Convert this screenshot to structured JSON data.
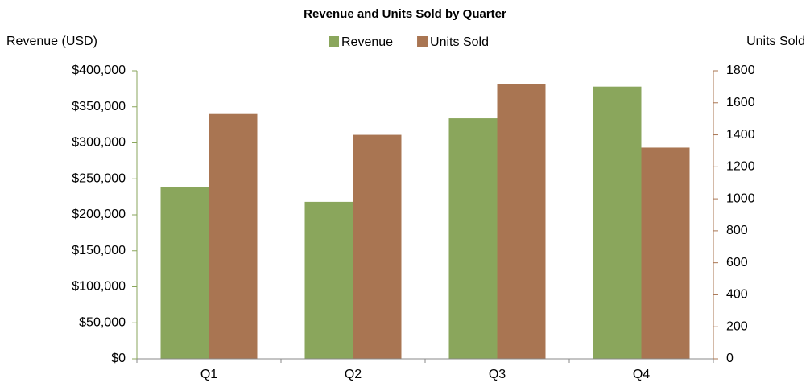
{
  "chart_data": {
    "type": "bar",
    "title": "Revenue and Units Sold by Quarter",
    "y_label": "Revenue (USD)",
    "y2_label": "Units Sold",
    "categories": [
      "Q1",
      "Q2",
      "Q3",
      "Q4"
    ],
    "series": [
      {
        "name": "Revenue",
        "color": "#8aa65c",
        "values": [
          238000,
          218000,
          334000,
          378000
        ]
      },
      {
        "name": "Units Sold",
        "color": "#a97552",
        "axis": "y2",
        "values": [
          1530,
          1400,
          1715,
          1320
        ]
      }
    ],
    "ylim": [
      0,
      400000
    ],
    "yticks": [
      {
        "value": 0,
        "label": "$0"
      },
      {
        "value": 50000,
        "label": "$50,000"
      },
      {
        "value": 100000,
        "label": "$100,000"
      },
      {
        "value": 150000,
        "label": "$150,000"
      },
      {
        "value": 200000,
        "label": "$200,000"
      },
      {
        "value": 250000,
        "label": "$250,000"
      },
      {
        "value": 300000,
        "label": "$300,000"
      },
      {
        "value": 350000,
        "label": "$350,000"
      },
      {
        "value": 400000,
        "label": "$400,000"
      }
    ],
    "y2lim": [
      0,
      1800
    ],
    "y2ticks": [
      0,
      200,
      400,
      600,
      800,
      1000,
      1200,
      1400,
      1600,
      1800
    ],
    "legend": "top",
    "grid": false
  }
}
